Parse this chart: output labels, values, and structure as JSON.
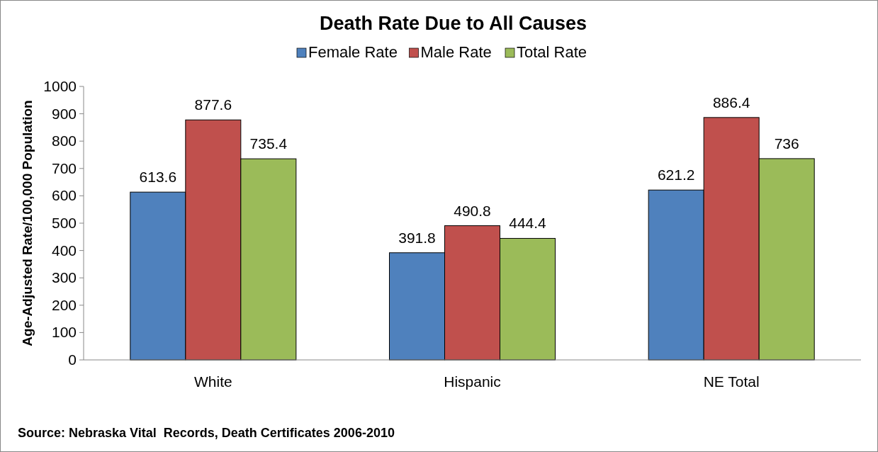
{
  "chart_data": {
    "type": "bar",
    "title": "Death Rate Due to All Causes",
    "ylabel": "Age-Adjusted Rate/100,000 Population",
    "categories": [
      "White",
      "Hispanic",
      "NE Total"
    ],
    "series": [
      {
        "name": "Female Rate",
        "color": "#4f81bd",
        "values": [
          613.6,
          391.8,
          621.2
        ]
      },
      {
        "name": "Male Rate",
        "color": "#c0504d",
        "values": [
          877.6,
          490.8,
          886.4
        ]
      },
      {
        "name": "Total Rate",
        "color": "#9bbb59",
        "values": [
          735.4,
          444.4,
          736
        ]
      }
    ],
    "ylim": [
      0,
      1000
    ],
    "yticks": [
      0,
      100,
      200,
      300,
      400,
      500,
      600,
      700,
      800,
      900,
      1000
    ],
    "data_labels": true,
    "legend": "top",
    "grid": false,
    "annotations": [
      "Source: Nebraska Vital  Records, Death Certificates 2006-2010"
    ]
  }
}
